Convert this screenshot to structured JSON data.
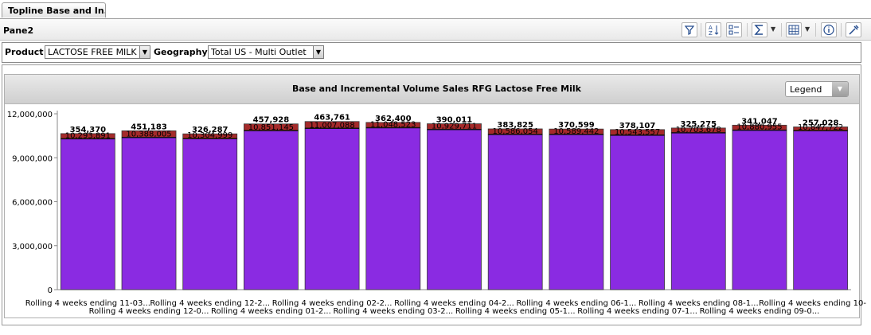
{
  "tab": {
    "label": "Topline Base and In..."
  },
  "pane": {
    "title": "Pane2"
  },
  "toolbar": {
    "icons": [
      "filter-icon",
      "sort-icon",
      "select-icon",
      "sum-icon",
      "layout-icon",
      "info-icon",
      "tools-icon"
    ]
  },
  "filters": {
    "product_label": "Product",
    "product_value": "LACTOSE FREE MILK",
    "geography_label": "Geography",
    "geography_value": "Total US - Multi Outlet"
  },
  "legend": {
    "label": "Legend"
  },
  "colors": {
    "base": "#8a2be2",
    "incremental": "#a52a2a"
  },
  "chart_data": {
    "type": "bar",
    "stacked": true,
    "title": "Base and Incremental Volume Sales RFG Lactose Free Milk",
    "xlabel": "",
    "ylabel": "",
    "ylim": [
      0,
      12000000
    ],
    "yticks": [
      "0",
      "3,000,000",
      "6,000,000",
      "9,000,000",
      "12,000,000"
    ],
    "categories": [
      "Rolling 4 weeks ending 11-03...",
      "Rolling 4 weeks ending 12-0...",
      "Rolling 4 weeks ending 12-2...",
      "Rolling 4 weeks ending 01-2...",
      "Rolling 4 weeks ending 02-2...",
      "Rolling 4 weeks ending 03-2...",
      "Rolling 4 weeks ending 04-2...",
      "Rolling 4 weeks ending 05-1...",
      "Rolling 4 weeks ending 06-1...",
      "Rolling 4 weeks ending 07-1...",
      "Rolling 4 weeks ending 08-1...",
      "Rolling 4 weeks ending 09-0...",
      "Rolling 4 weeks ending 10-"
    ],
    "series": [
      {
        "values": [
          10293891,
          10388005,
          10304999,
          10851145,
          11007088,
          11048523,
          10929711,
          10586054,
          10589442,
          10543557,
          10703678,
          10880955,
          10847722
        ]
      },
      {
        "values": [
          354370,
          451183,
          326287,
          457928,
          463761,
          362400,
          390011,
          383825,
          370599,
          378107,
          325275,
          341047,
          257028
        ]
      }
    ],
    "value_labels": {
      "base": [
        "10,293,891",
        "10,388,005",
        "10,304,999",
        "10,851,145",
        "11,007,088",
        "11,048,523",
        "10,929,711",
        "10,586,054",
        "10,589,442",
        "10,543,557",
        "10,703,678",
        "10,880,955",
        "10,847,722"
      ],
      "incremental": [
        "354,370",
        "451,183",
        "326,287",
        "457,928",
        "463,761",
        "362,400",
        "390,011",
        "383,825",
        "370,599",
        "378,107",
        "325,275",
        "341,047",
        "257,028"
      ]
    }
  }
}
